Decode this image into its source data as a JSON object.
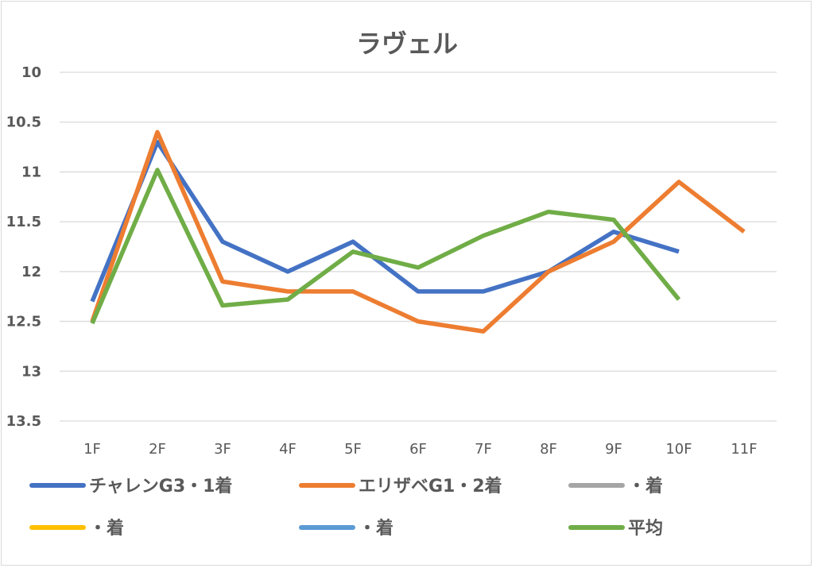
{
  "chart_data": {
    "type": "line",
    "title": "ラヴェル",
    "xlabel": "",
    "ylabel": "",
    "categories": [
      "1F",
      "2F",
      "3F",
      "4F",
      "5F",
      "6F",
      "7F",
      "8F",
      "9F",
      "10F",
      "11F"
    ],
    "y_ticks": [
      "10",
      "10.5",
      "11",
      "11.5",
      "12",
      "12.5",
      "13",
      "13.5"
    ],
    "ylim": [
      10,
      13.5
    ],
    "y_axis_reversed": true,
    "grid": true,
    "legend_position": "bottom",
    "series": [
      {
        "name": "チャレンG3・1着",
        "color": "#4472c4",
        "values": [
          12.3,
          10.7,
          11.7,
          12.0,
          11.7,
          12.2,
          12.2,
          12.0,
          11.6,
          11.8,
          null
        ]
      },
      {
        "name": "エリザベG1・2着",
        "color": "#ed7d31",
        "values": [
          12.5,
          10.6,
          12.1,
          12.2,
          12.2,
          12.5,
          12.6,
          12.0,
          11.7,
          11.1,
          11.6
        ]
      },
      {
        "name": "・着",
        "color": "#a5a5a5",
        "values": [
          null,
          null,
          null,
          null,
          null,
          null,
          null,
          null,
          null,
          null,
          null
        ]
      },
      {
        "name": "・着",
        "color": "#ffc000",
        "values": [
          null,
          null,
          null,
          null,
          null,
          null,
          null,
          null,
          null,
          null,
          null
        ]
      },
      {
        "name": "・着",
        "color": "#5b9bd5",
        "values": [
          null,
          null,
          null,
          null,
          null,
          null,
          null,
          null,
          null,
          null,
          null
        ]
      },
      {
        "name": "平均",
        "color": "#70ad47",
        "values": [
          12.52,
          10.98,
          12.34,
          12.28,
          11.8,
          11.96,
          11.64,
          11.4,
          11.48,
          12.28,
          null
        ]
      }
    ]
  }
}
